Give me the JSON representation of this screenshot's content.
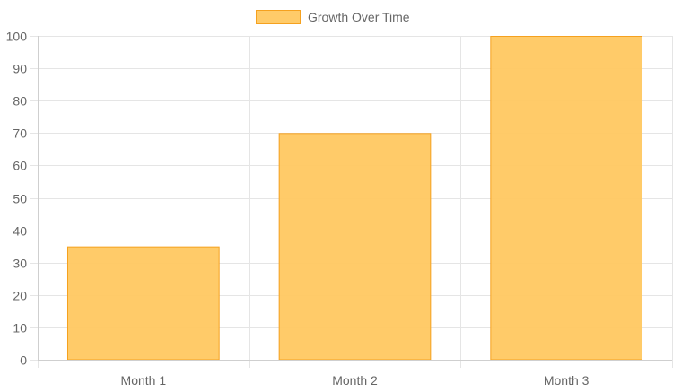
{
  "chart_data": {
    "type": "bar",
    "categories": [
      "Month 1",
      "Month 2",
      "Month 3"
    ],
    "series": [
      {
        "name": "Growth Over Time",
        "values": [
          35,
          70,
          100
        ]
      }
    ],
    "y_ticks": [
      "0",
      "10",
      "20",
      "30",
      "40",
      "50",
      "60",
      "70",
      "80",
      "90",
      "100"
    ],
    "ylim": [
      0,
      100
    ],
    "y_step": 10,
    "grid": true,
    "legend_position": "top-center",
    "colors": {
      "bar_fill": "#ffc861",
      "bar_fill_opacity": 0.95,
      "bar_border": "#f5a11f",
      "grid": "#e5e5e5",
      "axis": "#cfcfcf",
      "label_text": "#666666"
    }
  }
}
